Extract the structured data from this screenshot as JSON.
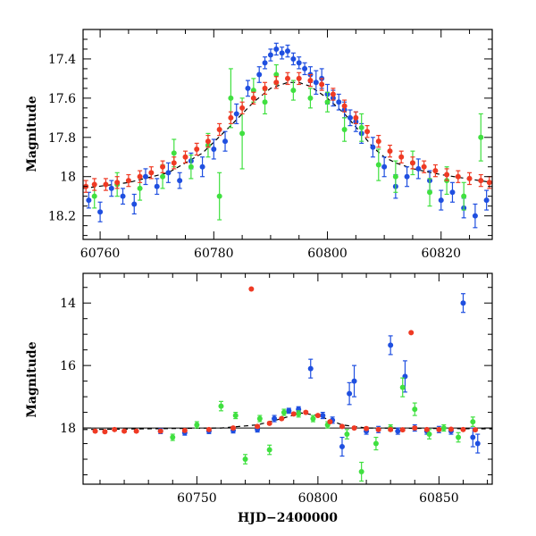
{
  "chart_data": [
    {
      "type": "scatter",
      "panel": "top",
      "title": "",
      "xlabel": "",
      "ylabel": "Magnitude",
      "xlim": [
        60757,
        60829
      ],
      "ylim": [
        18.32,
        17.25
      ],
      "y_inverted": true,
      "x_ticks": [
        60760,
        60780,
        60800,
        60820
      ],
      "x_tick_labels": [
        "60760",
        "60780",
        "60800",
        "60820"
      ],
      "y_ticks": [
        17.4,
        17.6,
        17.8,
        18,
        18.2
      ],
      "y_tick_labels": [
        "17.4",
        "17.6",
        "17.8",
        "18",
        "18.2"
      ],
      "grid": false,
      "colors": {
        "blue": "#1f4fe0",
        "green": "#40e040",
        "red": "#ef3a24"
      },
      "model_curve": {
        "x": [
          60757,
          60765,
          60772,
          60778,
          60783,
          60787,
          60790,
          60793,
          60795,
          60797,
          60800,
          60803,
          60806,
          60808,
          60810,
          60812,
          60815,
          60820,
          60829
        ],
        "y": [
          18.06,
          18.03,
          17.98,
          17.88,
          17.74,
          17.62,
          17.55,
          17.52,
          17.52,
          17.54,
          17.6,
          17.68,
          17.78,
          17.85,
          17.9,
          17.93,
          17.96,
          17.99,
          18.03
        ]
      },
      "series": [
        {
          "color": "blue",
          "x": [
            60758,
            60760,
            60762,
            60764,
            60766,
            60768,
            60770,
            60772,
            60774,
            60776,
            60778,
            60780,
            60782,
            60784,
            60786,
            60788,
            60789,
            60790,
            60791,
            60792,
            60793,
            60794,
            60795,
            60796,
            60797,
            60798,
            60799,
            60800,
            60801,
            60802,
            60803,
            60804,
            60805,
            60806,
            60808,
            60810,
            60812,
            60814,
            60816,
            60818,
            60820,
            60822,
            60824,
            60826,
            60828
          ],
          "y": [
            18.12,
            18.18,
            18.06,
            18.1,
            18.14,
            18.0,
            18.05,
            17.98,
            18.02,
            17.92,
            17.95,
            17.86,
            17.82,
            17.68,
            17.55,
            17.48,
            17.42,
            17.38,
            17.35,
            17.37,
            17.36,
            17.4,
            17.42,
            17.45,
            17.48,
            17.52,
            17.5,
            17.58,
            17.6,
            17.62,
            17.66,
            17.7,
            17.72,
            17.78,
            17.85,
            17.95,
            18.05,
            18.0,
            17.96,
            18.02,
            18.12,
            18.08,
            18.16,
            18.2,
            18.12
          ],
          "yerr": [
            0.04,
            0.05,
            0.04,
            0.04,
            0.05,
            0.04,
            0.04,
            0.05,
            0.04,
            0.04,
            0.05,
            0.05,
            0.05,
            0.05,
            0.04,
            0.04,
            0.03,
            0.03,
            0.03,
            0.03,
            0.03,
            0.03,
            0.03,
            0.03,
            0.04,
            0.06,
            0.05,
            0.05,
            0.04,
            0.04,
            0.04,
            0.04,
            0.05,
            0.05,
            0.05,
            0.05,
            0.06,
            0.05,
            0.05,
            0.05,
            0.05,
            0.05,
            0.05,
            0.06,
            0.05
          ]
        },
        {
          "color": "green",
          "x": [
            60759,
            60763,
            60767,
            60771,
            60773,
            60776,
            60779,
            60781,
            60783,
            60785,
            60787,
            60789,
            60791,
            60794,
            60797,
            60800,
            60803,
            60806,
            60809,
            60812,
            60815,
            60818,
            60821,
            60824,
            60827
          ],
          "y": [
            18.1,
            18.04,
            18.06,
            18.0,
            17.88,
            17.95,
            17.84,
            18.1,
            17.6,
            17.78,
            17.56,
            17.62,
            17.48,
            17.56,
            17.6,
            17.62,
            17.76,
            17.75,
            17.94,
            18.0,
            17.93,
            18.08,
            18.02,
            18.1,
            17.8
          ],
          "yerr": [
            0.06,
            0.06,
            0.06,
            0.06,
            0.07,
            0.06,
            0.06,
            0.12,
            0.15,
            0.18,
            0.06,
            0.06,
            0.05,
            0.05,
            0.05,
            0.05,
            0.06,
            0.07,
            0.08,
            0.08,
            0.06,
            0.07,
            0.07,
            0.07,
            0.12
          ]
        },
        {
          "color": "red",
          "x": [
            60757.5,
            60759,
            60761,
            60763,
            60765,
            60767,
            60769,
            60771,
            60773,
            60775,
            60777,
            60779,
            60781,
            60783,
            60785,
            60787,
            60789,
            60791,
            60793,
            60795,
            60797,
            60799,
            60801,
            60803,
            60805,
            60807,
            60809,
            60811,
            60813,
            60815,
            60817,
            60819,
            60821,
            60823,
            60825,
            60827,
            60828.5
          ],
          "y": [
            18.05,
            18.04,
            18.04,
            18.03,
            18.02,
            18.0,
            17.98,
            17.95,
            17.93,
            17.9,
            17.86,
            17.82,
            17.76,
            17.7,
            17.65,
            17.6,
            17.55,
            17.52,
            17.5,
            17.5,
            17.51,
            17.53,
            17.58,
            17.64,
            17.7,
            17.77,
            17.82,
            17.87,
            17.9,
            17.93,
            17.95,
            17.97,
            17.99,
            18.0,
            18.01,
            18.02,
            18.03
          ],
          "yerr": [
            0.03,
            0.03,
            0.03,
            0.03,
            0.03,
            0.03,
            0.03,
            0.03,
            0.03,
            0.03,
            0.03,
            0.03,
            0.03,
            0.03,
            0.03,
            0.03,
            0.03,
            0.03,
            0.03,
            0.03,
            0.03,
            0.03,
            0.03,
            0.03,
            0.03,
            0.03,
            0.03,
            0.03,
            0.03,
            0.03,
            0.03,
            0.03,
            0.03,
            0.03,
            0.03,
            0.03,
            0.03
          ]
        }
      ]
    },
    {
      "type": "scatter",
      "panel": "bottom",
      "title": "",
      "xlabel": "HJD−2400000",
      "ylabel": "Magnitude",
      "xlim": [
        60703,
        60872
      ],
      "ylim": [
        19.8,
        13.05
      ],
      "y_inverted": true,
      "x_ticks": [
        60750,
        60800,
        60850
      ],
      "x_tick_labels": [
        "60750",
        "60800",
        "60850"
      ],
      "y_ticks": [
        14,
        16,
        18
      ],
      "y_tick_labels": [
        "14",
        "16",
        "18"
      ],
      "grid": false,
      "colors": {
        "blue": "#1f4fe0",
        "green": "#40e040",
        "red": "#ef3a24"
      },
      "baseline": 18.0,
      "model_curve": {
        "x": [
          60703,
          60760,
          60775,
          60785,
          60793,
          60800,
          60810,
          60820,
          60872
        ],
        "y": [
          18.05,
          18.0,
          17.9,
          17.7,
          17.52,
          17.6,
          17.9,
          18.0,
          18.03
        ]
      },
      "series": [
        {
          "color": "blue",
          "x": [
            60735,
            60745,
            60755,
            60765,
            60775,
            60782,
            60788,
            60792,
            60797,
            60802,
            60806,
            60810,
            60813,
            60815,
            60820,
            60825,
            60830,
            60833,
            60836,
            60840,
            60845,
            60850,
            60855,
            60860,
            60864,
            60866
          ],
          "y": [
            18.1,
            18.15,
            18.1,
            18.08,
            18.05,
            17.7,
            17.45,
            17.4,
            16.1,
            17.6,
            17.75,
            18.6,
            16.9,
            16.5,
            18.1,
            18.05,
            15.35,
            18.1,
            16.35,
            18.0,
            18.1,
            18.05,
            18.1,
            14.0,
            18.3,
            18.5
          ],
          "yerr": [
            0.08,
            0.08,
            0.08,
            0.08,
            0.08,
            0.1,
            0.08,
            0.08,
            0.3,
            0.1,
            0.1,
            0.3,
            0.35,
            0.5,
            0.1,
            0.1,
            0.3,
            0.1,
            0.5,
            0.1,
            0.1,
            0.1,
            0.1,
            0.3,
            0.3,
            0.3
          ]
        },
        {
          "color": "green",
          "x": [
            60740,
            60750,
            60760,
            60766,
            60770,
            60776,
            60780,
            60786,
            60792,
            60798,
            60804,
            60812,
            60818,
            60824,
            60830,
            60835,
            60840,
            60846,
            60852,
            60858,
            60864
          ],
          "y": [
            18.3,
            17.9,
            17.3,
            17.6,
            19.0,
            17.7,
            18.7,
            17.5,
            17.55,
            17.7,
            17.9,
            18.2,
            19.4,
            18.5,
            18.0,
            16.7,
            17.4,
            18.2,
            18.0,
            18.3,
            17.8
          ],
          "yerr": [
            0.1,
            0.1,
            0.15,
            0.1,
            0.15,
            0.1,
            0.15,
            0.1,
            0.1,
            0.1,
            0.1,
            0.15,
            0.3,
            0.2,
            0.1,
            0.3,
            0.2,
            0.15,
            0.1,
            0.15,
            0.15
          ]
        },
        {
          "color": "red",
          "x": [
            60708,
            60712,
            60716,
            60720,
            60725,
            60735,
            60745,
            60755,
            60765,
            60772.5,
            60775,
            60780,
            60785,
            60790,
            60795,
            60800,
            60805,
            60810,
            60815,
            60820,
            60825,
            60830,
            60835,
            60838.5,
            60840,
            60845,
            60850,
            60855,
            60860,
            60865
          ],
          "y": [
            18.1,
            18.12,
            18.05,
            18.1,
            18.1,
            18.1,
            18.08,
            18.05,
            18.0,
            13.55,
            17.95,
            17.85,
            17.7,
            17.55,
            17.5,
            17.6,
            17.8,
            17.95,
            18.0,
            18.02,
            18.05,
            18.05,
            18.06,
            14.95,
            18.0,
            18.05,
            18.05,
            18.04,
            18.05,
            18.06
          ],
          "yerr": [
            0.04,
            0.04,
            0.04,
            0.04,
            0.04,
            0.04,
            0.04,
            0.04,
            0.04,
            0.0,
            0.04,
            0.04,
            0.04,
            0.04,
            0.04,
            0.04,
            0.04,
            0.04,
            0.04,
            0.04,
            0.04,
            0.04,
            0.04,
            0.0,
            0.04,
            0.04,
            0.04,
            0.04,
            0.04,
            0.04
          ]
        }
      ]
    }
  ]
}
